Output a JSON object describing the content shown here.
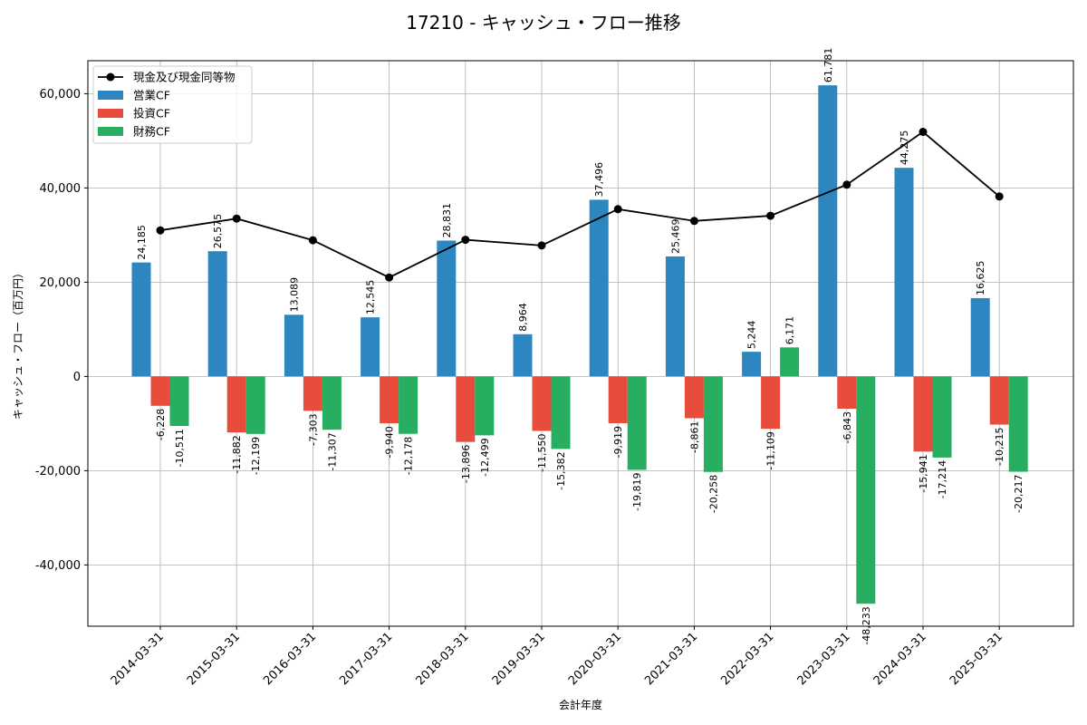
{
  "chart_data": {
    "type": "bar",
    "title": "17210 - キャッシュ・フロー推移",
    "xlabel": "会計年度",
    "ylabel": "キャッシュ・フロー（百万円）",
    "ylim": [
      -53000,
      67000
    ],
    "yticks": [
      -40000,
      -20000,
      0,
      20000,
      40000,
      60000
    ],
    "ytick_labels": [
      "-40,000",
      "-20,000",
      "0",
      "20,000",
      "40,000",
      "60,000"
    ],
    "grid": true,
    "legend_position": "top-left",
    "categories": [
      "2014-03-31",
      "2015-03-31",
      "2016-03-31",
      "2017-03-31",
      "2018-03-31",
      "2019-03-31",
      "2020-03-31",
      "2021-03-31",
      "2022-03-31",
      "2023-03-31",
      "2024-03-31",
      "2025-03-31"
    ],
    "series": [
      {
        "name": "営業CF",
        "kind": "bar",
        "color": "#2E86C1",
        "values": [
          24185,
          26575,
          13089,
          12545,
          28831,
          8964,
          37496,
          25469,
          5244,
          61781,
          44275,
          16625
        ]
      },
      {
        "name": "投資CF",
        "kind": "bar",
        "color": "#E74C3C",
        "values": [
          -6228,
          -11882,
          -7303,
          -9940,
          -13896,
          -11550,
          -9919,
          -8861,
          -11109,
          -6843,
          -15941,
          -10215
        ]
      },
      {
        "name": "財務CF",
        "kind": "bar",
        "color": "#27AE60",
        "values": [
          -10511,
          -12199,
          -11307,
          -12178,
          -12499,
          -15382,
          -19819,
          -20258,
          6171,
          -48233,
          -17214,
          -20217
        ]
      },
      {
        "name": "現金及び現金同等物",
        "kind": "line",
        "color": "#000000",
        "values": [
          31000,
          33500,
          28900,
          21000,
          29000,
          27800,
          35500,
          33000,
          34100,
          40700,
          51900,
          38200
        ]
      }
    ]
  }
}
